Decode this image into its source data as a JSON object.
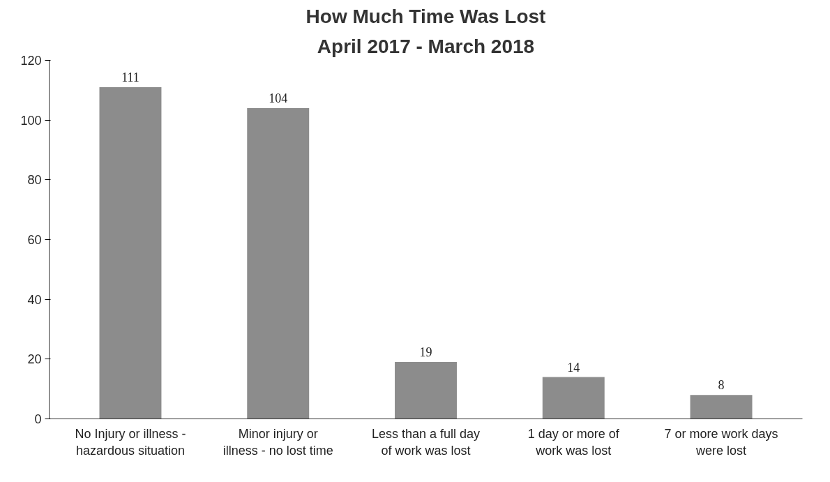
{
  "chart_data": {
    "type": "bar",
    "title": "How Much Time Was Lost",
    "subtitle": "April 2017 - March 2018",
    "categories": [
      "No Injury or illness -\nhazardous situation",
      "Minor injury or\nillness - no lost time",
      "Less than a full day\nof work was lost",
      "1 day or more of\nwork was lost",
      "7 or more work days\nwere lost"
    ],
    "values": [
      111,
      104,
      19,
      14,
      8
    ],
    "color": "#8c8c8c",
    "ylim": [
      0,
      120
    ],
    "yticks": [
      0,
      20,
      40,
      60,
      80,
      100,
      120
    ],
    "grid": false,
    "data_labels": true
  }
}
